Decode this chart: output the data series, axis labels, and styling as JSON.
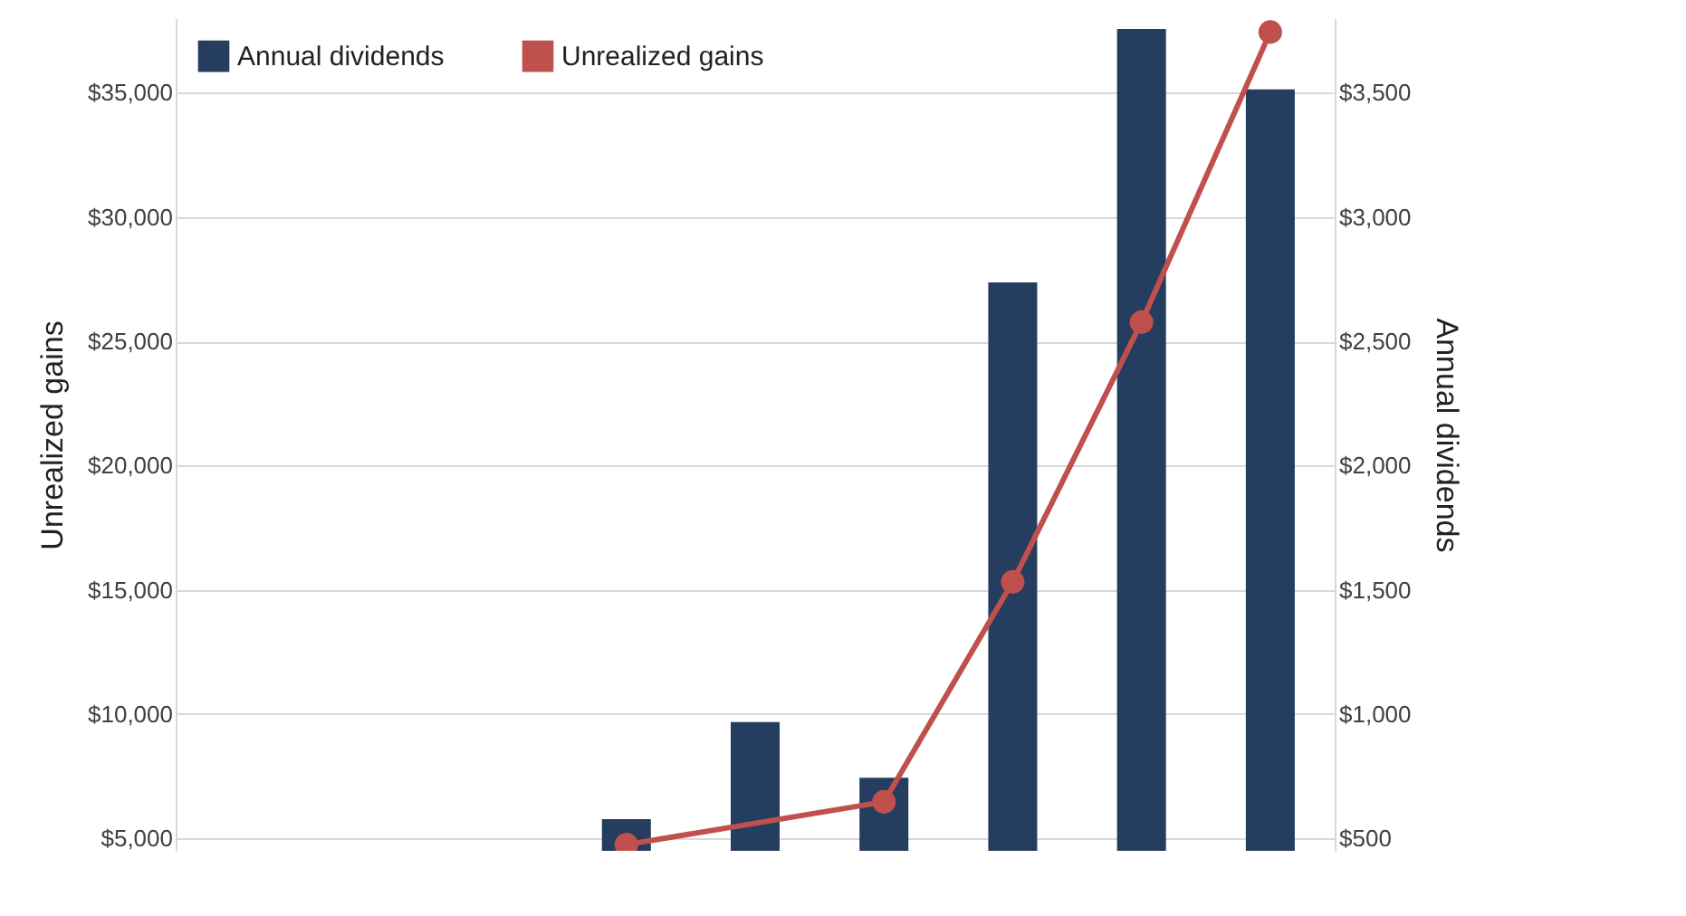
{
  "chart_data": {
    "type": "bar",
    "categories": [
      null,
      null,
      null,
      null,
      null,
      null,
      null,
      null,
      null
    ],
    "series": [
      {
        "name": "Annual dividends",
        "axis": "y2",
        "color": "#253d5e",
        "values": [
          null,
          null,
          null,
          577,
          968,
          744,
          2737,
          3756,
          3513
        ]
      },
      {
        "name": "Unrealized gains",
        "type": "line",
        "color": "#c0504d",
        "marker": "circle",
        "values": [
          null,
          null,
          null,
          4750,
          null,
          6470,
          15320,
          25770,
          37440
        ]
      }
    ],
    "ylabel": "Unrealized gains",
    "y2label": "Annual dividends",
    "ylim": [
      4500,
      38000
    ],
    "yticks": [
      {
        "value": 5000,
        "label": "$5,000"
      },
      {
        "value": 10000,
        "label": "$10,000"
      },
      {
        "value": 15000,
        "label": "$15,000"
      },
      {
        "value": 20000,
        "label": "$20,000"
      },
      {
        "value": 25000,
        "label": "$25,000"
      },
      {
        "value": 30000,
        "label": "$30,000"
      },
      {
        "value": 35000,
        "label": "$35,000"
      }
    ],
    "y2lim": [
      450,
      3800
    ],
    "y2ticks": [
      {
        "value": 500,
        "label": "$500"
      },
      {
        "value": 1000,
        "label": "$1,000"
      },
      {
        "value": 1500,
        "label": "$1,500"
      },
      {
        "value": 2000,
        "label": "$2,000"
      },
      {
        "value": 2500,
        "label": "$2,500"
      },
      {
        "value": 3000,
        "label": "$3,000"
      },
      {
        "value": 3500,
        "label": "$3,500"
      }
    ],
    "grid": "y",
    "legend": "top left"
  }
}
